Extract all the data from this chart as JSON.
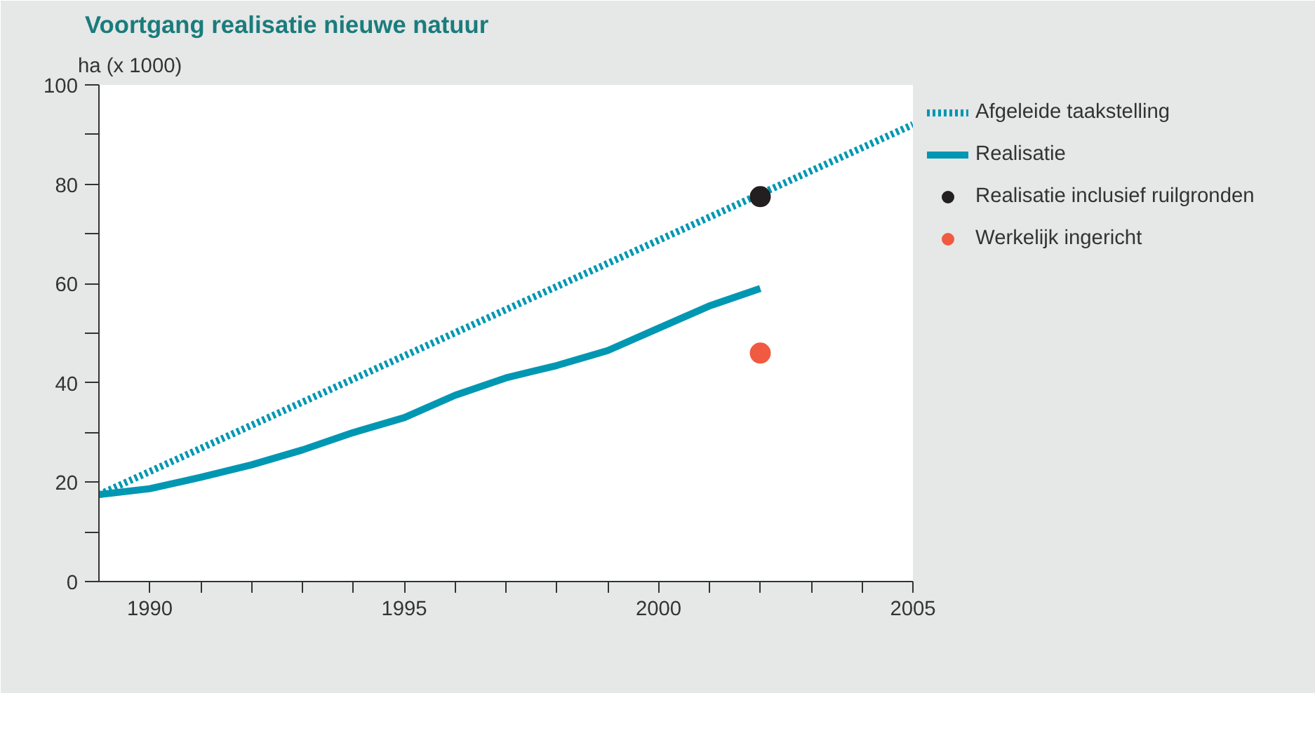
{
  "chart_data": {
    "type": "line",
    "title": "Voortgang realisatie nieuwe natuur",
    "ylabel": "ha (x 1000)",
    "xlim": [
      1989,
      2005
    ],
    "ylim": [
      0,
      100
    ],
    "xticks": [
      {
        "value": 1990,
        "label": "1990"
      },
      {
        "value": 1991,
        "label": null
      },
      {
        "value": 1992,
        "label": null
      },
      {
        "value": 1993,
        "label": null
      },
      {
        "value": 1994,
        "label": null
      },
      {
        "value": 1995,
        "label": "1995"
      },
      {
        "value": 1996,
        "label": null
      },
      {
        "value": 1997,
        "label": null
      },
      {
        "value": 1998,
        "label": null
      },
      {
        "value": 1999,
        "label": null
      },
      {
        "value": 2000,
        "label": "2000"
      },
      {
        "value": 2001,
        "label": null
      },
      {
        "value": 2002,
        "label": null
      },
      {
        "value": 2003,
        "label": null
      },
      {
        "value": 2004,
        "label": null
      },
      {
        "value": 2005,
        "label": "2005"
      }
    ],
    "yticks": [
      0,
      {
        "value": 10,
        "label": null
      },
      20,
      {
        "value": 30,
        "label": null
      },
      40,
      {
        "value": 50,
        "label": null
      },
      60,
      {
        "value": 70,
        "label": null
      },
      80,
      {
        "value": 90,
        "label": null
      },
      100
    ],
    "grid": false,
    "legend": "right",
    "series": [
      {
        "name": "Afgeleide taakstelling",
        "line_style": "dotted",
        "color": "#0097b2",
        "x": [
          1989,
          2005
        ],
        "values": [
          17.5,
          92
        ]
      },
      {
        "name": "Realisatie",
        "line_style": "solid",
        "color": "#0097b2",
        "x": [
          1989,
          1990,
          1991,
          1992,
          1993,
          1994,
          1995,
          1996,
          1997,
          1998,
          1999,
          2000,
          2001,
          2002
        ],
        "values": [
          17.5,
          18.7,
          21,
          23.5,
          26.5,
          30,
          33,
          37.5,
          41,
          43.5,
          46.5,
          51,
          55.5,
          59
        ]
      },
      {
        "name": "Realisatie inclusief ruilgronden",
        "type": "scatter",
        "marker": "circle",
        "color": "#231f20",
        "x": [
          2002
        ],
        "values": [
          77.5
        ]
      },
      {
        "name": "Werkelijk ingericht",
        "type": "scatter",
        "marker": "circle",
        "color": "#f05a40",
        "x": [
          2002
        ],
        "values": [
          46
        ]
      }
    ]
  }
}
